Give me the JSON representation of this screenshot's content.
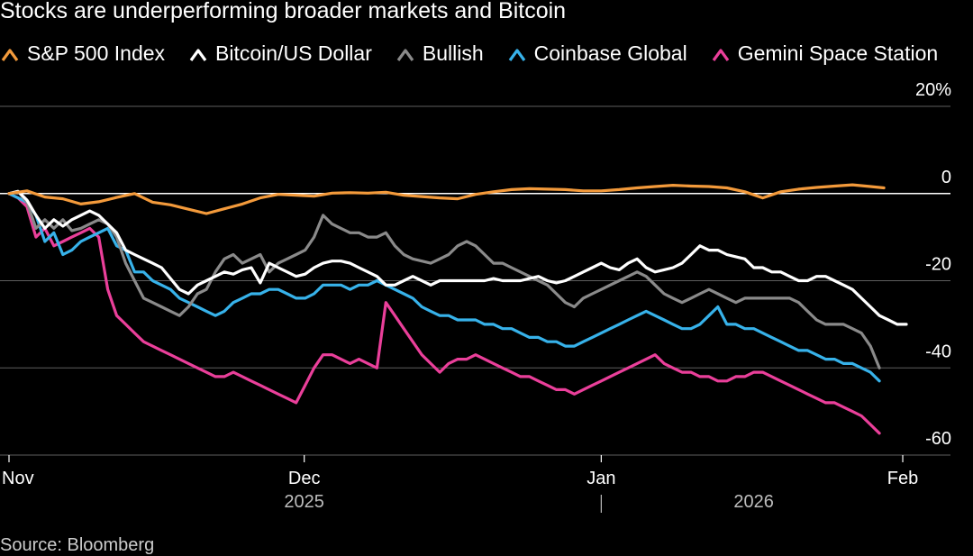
{
  "chart_data": {
    "type": "line",
    "title": "Stocks are underperforming broader markets and Bitcoin",
    "source": "Source: Bloomberg",
    "yunit": "%",
    "ylim": [
      -60,
      20
    ],
    "yticks": [
      {
        "value": 20,
        "label": "20%"
      },
      {
        "value": 0,
        "label": "0"
      },
      {
        "value": -20,
        "label": "-20"
      },
      {
        "value": -40,
        "label": "-40"
      },
      {
        "value": -60,
        "label": "-60"
      }
    ],
    "xlim": [
      0,
      100
    ],
    "xticks": [
      {
        "x": 0,
        "label": "Nov"
      },
      {
        "x": 32.9,
        "label": "Dec"
      },
      {
        "x": 66.0,
        "label": "Jan"
      },
      {
        "x": 99.6,
        "label": "Feb"
      }
    ],
    "year_labels": [
      {
        "x": 32.9,
        "label": "2025"
      },
      {
        "x": 83.0,
        "label": "2026"
      }
    ],
    "year_divider_x": 66.0,
    "series": [
      {
        "name": "S&P 500 Index",
        "color": "#f39a3b",
        "x": [
          0,
          2,
          4,
          6,
          8,
          10,
          12,
          14,
          16,
          18,
          20,
          22,
          24,
          26,
          28,
          30,
          32,
          34,
          36,
          38,
          40,
          42,
          44,
          46,
          48,
          50,
          52,
          54,
          56,
          58,
          60,
          62,
          64,
          66,
          68,
          70,
          72,
          74,
          76,
          78,
          80,
          82,
          84,
          86,
          88,
          90,
          92,
          94,
          96,
          97.5
        ],
        "y": [
          0,
          0.6,
          -0.8,
          -1.2,
          -2.4,
          -1.9,
          -0.9,
          0,
          -2,
          -2.6,
          -3.6,
          -4.6,
          -3.5,
          -2.4,
          -1,
          -0.2,
          -0.4,
          -0.6,
          0.1,
          0.2,
          0.1,
          0.3,
          -0.4,
          -0.7,
          -1,
          -1.2,
          -0.2,
          0.4,
          0.9,
          1.1,
          1,
          0.9,
          0.6,
          0.6,
          0.9,
          1.3,
          1.6,
          1.9,
          1.7,
          1.6,
          1.3,
          0.4,
          -1,
          0.4,
          1,
          1.4,
          1.7,
          2,
          1.6,
          1.3
        ]
      },
      {
        "name": "Bitcoin/US Dollar",
        "color": "#ffffff",
        "x": [
          0,
          1,
          2,
          3,
          4,
          5,
          6,
          7,
          8,
          9,
          10,
          11,
          12,
          13,
          14,
          15,
          16,
          17,
          18,
          19,
          20,
          21,
          22,
          23,
          24,
          25,
          26,
          27,
          28,
          29,
          30,
          31,
          32,
          33,
          34,
          35,
          36,
          37,
          38,
          39,
          40,
          41,
          42,
          43,
          44,
          45,
          46,
          47,
          48,
          49,
          50,
          51,
          52,
          53,
          54,
          55,
          56,
          57,
          58,
          59,
          60,
          61,
          62,
          63,
          64,
          65,
          66,
          67,
          68,
          69,
          70,
          71,
          72,
          73,
          74,
          75,
          76,
          77,
          78,
          79,
          80,
          81,
          82,
          83,
          84,
          85,
          86,
          87,
          88,
          89,
          90,
          91,
          92,
          93,
          94,
          95,
          96,
          97,
          98,
          99,
          100
        ],
        "y": [
          0,
          0.5,
          -1.5,
          -5,
          -8,
          -6,
          -7.5,
          -6,
          -5,
          -4,
          -5,
          -7,
          -9,
          -13,
          -14,
          -15,
          -16,
          -17,
          -19.5,
          -22,
          -23,
          -21,
          -20,
          -19,
          -18,
          -18.5,
          -17.5,
          -17,
          -20.5,
          -16,
          -17,
          -18,
          -19,
          -18.5,
          -17,
          -16,
          -15.5,
          -15.5,
          -16,
          -17,
          -18,
          -19,
          -21,
          -21,
          -20,
          -19,
          -20,
          -21,
          -20,
          -20,
          -20,
          -20,
          -20,
          -20,
          -19.5,
          -20,
          -20,
          -20,
          -19.5,
          -19,
          -20,
          -20.5,
          -20,
          -19,
          -18,
          -17,
          -16,
          -17,
          -17.5,
          -16,
          -15,
          -17,
          -18,
          -17.5,
          -17,
          -16,
          -14,
          -12,
          -13,
          -13,
          -14,
          -14.5,
          -15,
          -17,
          -17,
          -18,
          -18,
          -19,
          -20,
          -20,
          -19,
          -19,
          -20,
          -21,
          -22,
          -24,
          -26,
          -28,
          -29,
          -30,
          -30
        ]
      },
      {
        "name": "Bullish",
        "color": "#8a8a8a",
        "x": [
          0,
          1,
          2,
          3,
          4,
          5,
          6,
          7,
          8,
          9,
          10,
          11,
          12,
          13,
          14,
          15,
          16,
          17,
          18,
          19,
          20,
          21,
          22,
          23,
          24,
          25,
          26,
          27,
          28,
          29,
          30,
          31,
          32,
          33,
          34,
          35,
          36,
          37,
          38,
          39,
          40,
          41,
          42,
          43,
          44,
          45,
          46,
          47,
          48,
          49,
          50,
          51,
          52,
          53,
          54,
          55,
          56,
          57,
          58,
          59,
          60,
          61,
          62,
          63,
          64,
          65,
          66,
          67,
          68,
          69,
          70,
          71,
          72,
          73,
          74,
          75,
          76,
          77,
          78,
          79,
          80,
          81,
          82,
          83,
          84,
          85,
          86,
          87,
          88,
          89,
          90,
          91,
          92,
          93,
          94,
          95,
          96,
          97
        ],
        "y": [
          0,
          0.5,
          -2,
          -8,
          -6,
          -8,
          -6,
          -8.5,
          -8,
          -7,
          -6,
          -7,
          -10,
          -16,
          -20,
          -24,
          -25,
          -26,
          -27,
          -28,
          -26,
          -23,
          -22,
          -18,
          -15,
          -14,
          -16,
          -15,
          -14,
          -18,
          -16,
          -15,
          -14,
          -13,
          -10,
          -5,
          -7,
          -8,
          -9,
          -9,
          -10,
          -10,
          -9,
          -12,
          -14,
          -15,
          -15.5,
          -16,
          -15,
          -14,
          -12,
          -11,
          -12,
          -14,
          -16,
          -16,
          -17,
          -18,
          -19,
          -20,
          -21,
          -23,
          -25,
          -26,
          -24,
          -23,
          -22,
          -21,
          -20,
          -19,
          -18,
          -19,
          -21,
          -23,
          -24,
          -25,
          -24,
          -23,
          -22,
          -23,
          -24,
          -25,
          -24,
          -24,
          -24,
          -24,
          -24,
          -24,
          -25,
          -27,
          -29,
          -30,
          -30,
          -30,
          -31,
          -32,
          -35,
          -40
        ]
      },
      {
        "name": "Coinbase Global",
        "color": "#37b2ea",
        "x": [
          0,
          1,
          2,
          3,
          4,
          5,
          6,
          7,
          8,
          9,
          10,
          11,
          12,
          13,
          14,
          15,
          16,
          17,
          18,
          19,
          20,
          21,
          22,
          23,
          24,
          25,
          26,
          27,
          28,
          29,
          30,
          31,
          32,
          33,
          34,
          35,
          36,
          37,
          38,
          39,
          40,
          41,
          42,
          43,
          44,
          45,
          46,
          47,
          48,
          49,
          50,
          51,
          52,
          53,
          54,
          55,
          56,
          57,
          58,
          59,
          60,
          61,
          62,
          63,
          64,
          65,
          66,
          67,
          68,
          69,
          70,
          71,
          72,
          73,
          74,
          75,
          76,
          77,
          78,
          79,
          80,
          81,
          82,
          83,
          84,
          85,
          86,
          87,
          88,
          89,
          90,
          91,
          92,
          93,
          94,
          95,
          96,
          97
        ],
        "y": [
          0,
          -1,
          -2,
          -5,
          -11,
          -9,
          -14,
          -13,
          -11,
          -10,
          -9,
          -8,
          -12,
          -13,
          -18,
          -18,
          -20,
          -21,
          -22,
          -24,
          -25,
          -26,
          -27,
          -28,
          -27,
          -25,
          -24,
          -23,
          -23,
          -22,
          -22,
          -23,
          -24,
          -24,
          -23,
          -21,
          -21,
          -21,
          -22,
          -21,
          -21,
          -20,
          -21,
          -22,
          -23,
          -24,
          -26,
          -27,
          -28,
          -28,
          -29,
          -29,
          -29,
          -30,
          -30,
          -31,
          -31,
          -32,
          -33,
          -33,
          -34,
          -34,
          -35,
          -35,
          -34,
          -33,
          -32,
          -31,
          -30,
          -29,
          -28,
          -27,
          -28,
          -29,
          -30,
          -31,
          -31,
          -30,
          -28,
          -26,
          -30,
          -30,
          -31,
          -31,
          -32,
          -33,
          -34,
          -35,
          -36,
          -36,
          -37,
          -38,
          -38,
          -39,
          -39,
          -40,
          -41,
          -43
        ]
      },
      {
        "name": "Gemini Space Station",
        "color": "#ea3f9a",
        "x": [
          0,
          1,
          2,
          3,
          4,
          5,
          6,
          7,
          8,
          9,
          10,
          11,
          12,
          13,
          14,
          15,
          16,
          17,
          18,
          19,
          20,
          21,
          22,
          23,
          24,
          25,
          26,
          27,
          28,
          29,
          30,
          31,
          32,
          33,
          34,
          35,
          36,
          37,
          38,
          39,
          40,
          41,
          42,
          43,
          44,
          45,
          46,
          47,
          48,
          49,
          50,
          51,
          52,
          53,
          54,
          55,
          56,
          57,
          58,
          59,
          60,
          61,
          62,
          63,
          64,
          65,
          66,
          67,
          68,
          69,
          70,
          71,
          72,
          73,
          74,
          75,
          76,
          77,
          78,
          79,
          80,
          81,
          82,
          83,
          84,
          85,
          86,
          87,
          88,
          89,
          90,
          91,
          92,
          93,
          94,
          95,
          96,
          97
        ],
        "y": [
          0,
          -1,
          -3,
          -10,
          -8,
          -12,
          -11,
          -10,
          -9,
          -8,
          -10,
          -22,
          -28,
          -30,
          -32,
          -34,
          -35,
          -36,
          -37,
          -38,
          -39,
          -40,
          -41,
          -42,
          -42,
          -41,
          -42,
          -43,
          -44,
          -45,
          -46,
          -47,
          -48,
          -44,
          -40,
          -37,
          -37,
          -38,
          -39,
          -38,
          -39,
          -40,
          -25,
          -28,
          -31,
          -34,
          -37,
          -39,
          -41,
          -39,
          -38,
          -38,
          -37,
          -38,
          -39,
          -40,
          -41,
          -42,
          -42,
          -43,
          -44,
          -45,
          -45,
          -46,
          -45,
          -44,
          -43,
          -42,
          -41,
          -40,
          -39,
          -38,
          -37,
          -39,
          -40,
          -41,
          -41,
          -42,
          -42,
          -43,
          -43,
          -42,
          -42,
          -41,
          -41,
          -42,
          -43,
          -44,
          -45,
          -46,
          -47,
          -48,
          -48,
          -49,
          -50,
          -51,
          -53,
          -55
        ]
      }
    ]
  }
}
